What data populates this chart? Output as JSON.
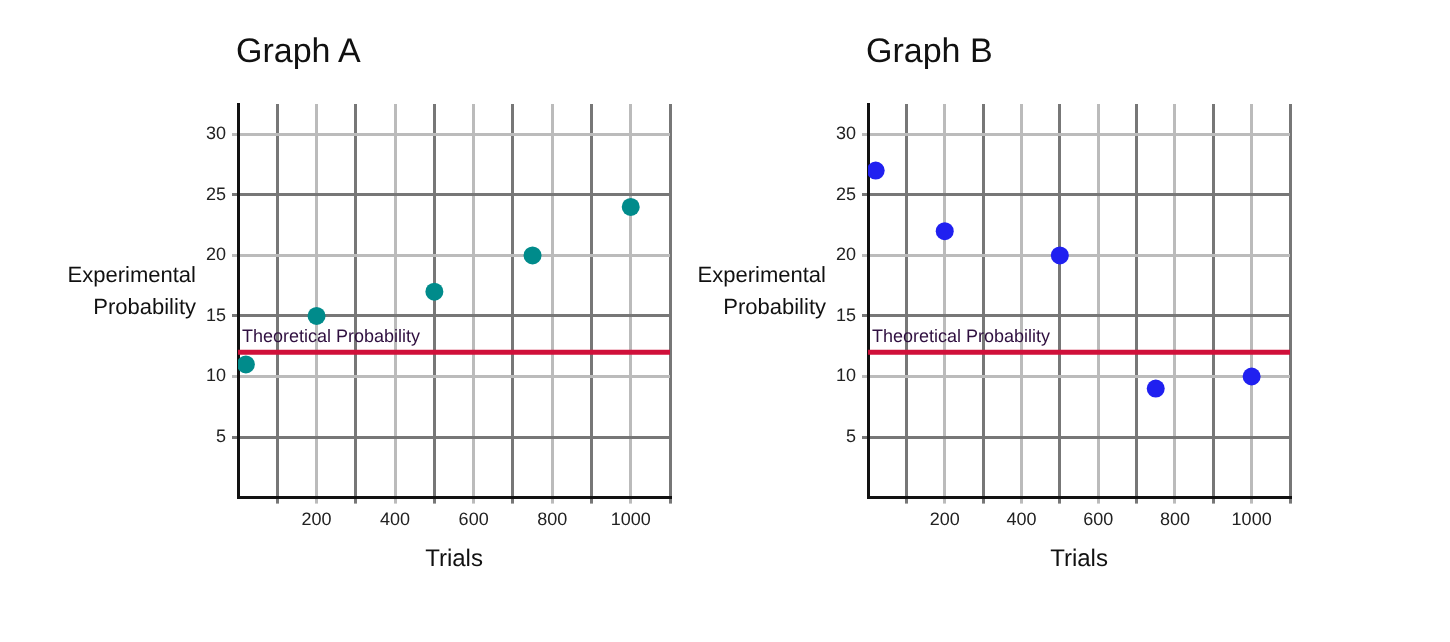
{
  "chart_data": [
    {
      "type": "scatter",
      "title": "Graph A",
      "xlabel": "Trials",
      "ylabel": "Experimental Probability",
      "x": [
        20,
        200,
        500,
        750,
        1000
      ],
      "series": [
        {
          "color": "#008b8b",
          "values": [
            11,
            15,
            17,
            20,
            24
          ]
        }
      ],
      "xlim": [
        0,
        1100
      ],
      "xticks": [
        {
          "value": 100,
          "label": null
        },
        200,
        {
          "value": 300,
          "label": null
        },
        400,
        {
          "value": 500,
          "label": null
        },
        600,
        {
          "value": 700,
          "label": null
        },
        800,
        {
          "value": 900,
          "label": null
        },
        1000,
        {
          "value": 1100,
          "label": null
        }
      ],
      "ylim": [
        0,
        32.5
      ],
      "yticks": [
        5,
        10,
        15,
        20,
        25,
        30
      ],
      "grid": true,
      "legend": false,
      "marker": "circle",
      "ref_lines": [
        {
          "axis": "y",
          "value": 12,
          "label": "Theoretical Probability",
          "color": "#d0103a"
        }
      ]
    },
    {
      "type": "scatter",
      "title": "Graph B",
      "xlabel": "Trials",
      "ylabel": "Experimental Probability",
      "x": [
        20,
        200,
        500,
        750,
        1000
      ],
      "series": [
        {
          "color": "#2020f0",
          "values": [
            27,
            22,
            20,
            9,
            10
          ]
        }
      ],
      "xlim": [
        0,
        1100
      ],
      "xticks": [
        {
          "value": 100,
          "label": null
        },
        200,
        {
          "value": 300,
          "label": null
        },
        400,
        {
          "value": 500,
          "label": null
        },
        600,
        {
          "value": 700,
          "label": null
        },
        800,
        {
          "value": 900,
          "label": null
        },
        1000,
        {
          "value": 1100,
          "label": null
        }
      ],
      "ylim": [
        0,
        32.5
      ],
      "yticks": [
        5,
        10,
        15,
        20,
        25,
        30
      ],
      "grid": true,
      "legend": false,
      "marker": "circle",
      "ref_lines": [
        {
          "axis": "y",
          "value": 12,
          "label": "Theoretical Probability",
          "color": "#d0103a"
        }
      ]
    }
  ]
}
